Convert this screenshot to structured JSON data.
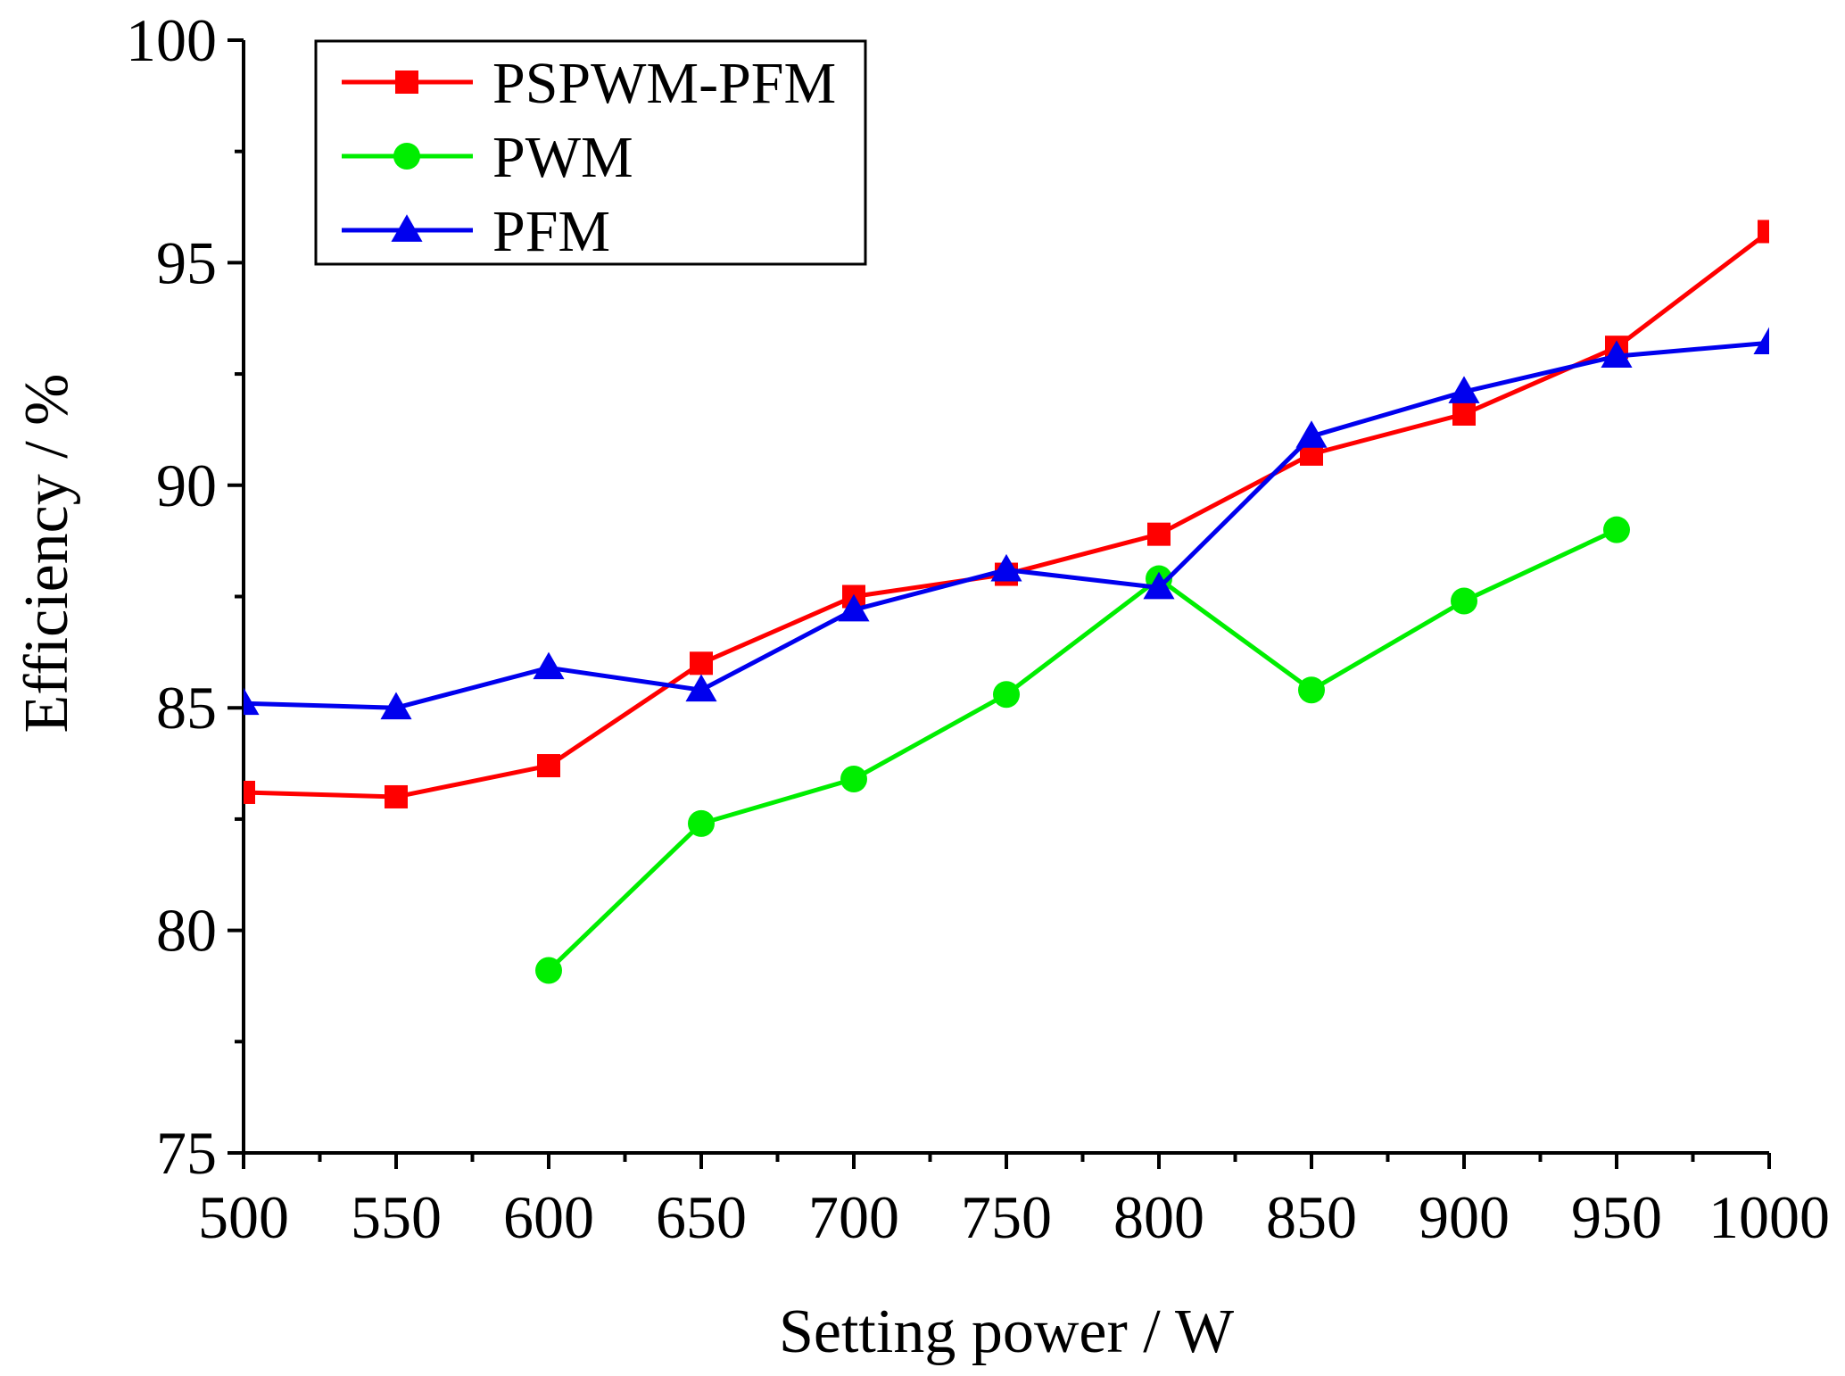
{
  "chart_data": {
    "type": "line",
    "title": "",
    "xlabel": "Setting power / W",
    "ylabel": "Efficiency / %",
    "xlim": [
      500,
      1000
    ],
    "ylim": [
      75,
      100
    ],
    "x_ticks": [
      500,
      550,
      600,
      650,
      700,
      750,
      800,
      850,
      900,
      950,
      1000
    ],
    "x_tick_labels": [
      "500",
      "550",
      "600",
      "650",
      "700",
      "750",
      "800",
      "850",
      "900",
      "950",
      "1000"
    ],
    "y_ticks": [
      75,
      80,
      85,
      90,
      95,
      100
    ],
    "y_tick_labels": [
      "75",
      "80",
      "85",
      "90",
      "95",
      "100"
    ],
    "grid": false,
    "legend_position": "top-left",
    "series": [
      {
        "name": "PSPWM-PFM",
        "color": "#ff0000",
        "marker": "square",
        "x": [
          500,
          550,
          600,
          650,
          700,
          750,
          800,
          850,
          900,
          950,
          1000
        ],
        "values": [
          83.1,
          83.0,
          83.7,
          86.0,
          87.5,
          88.0,
          88.9,
          90.7,
          91.6,
          93.1,
          95.7
        ]
      },
      {
        "name": "PWM",
        "color": "#00ee00",
        "marker": "circle",
        "x": [
          600,
          650,
          700,
          750,
          800,
          850,
          900,
          950
        ],
        "values": [
          79.1,
          82.4,
          83.4,
          85.3,
          87.9,
          85.4,
          87.4,
          89.0
        ]
      },
      {
        "name": "PFM",
        "color": "#0000ee",
        "marker": "triangle",
        "x": [
          500,
          550,
          600,
          650,
          700,
          750,
          800,
          850,
          900,
          950,
          1000
        ],
        "values": [
          85.1,
          85.0,
          85.9,
          85.4,
          87.2,
          88.1,
          87.7,
          91.1,
          92.1,
          92.9,
          93.2
        ]
      }
    ]
  }
}
